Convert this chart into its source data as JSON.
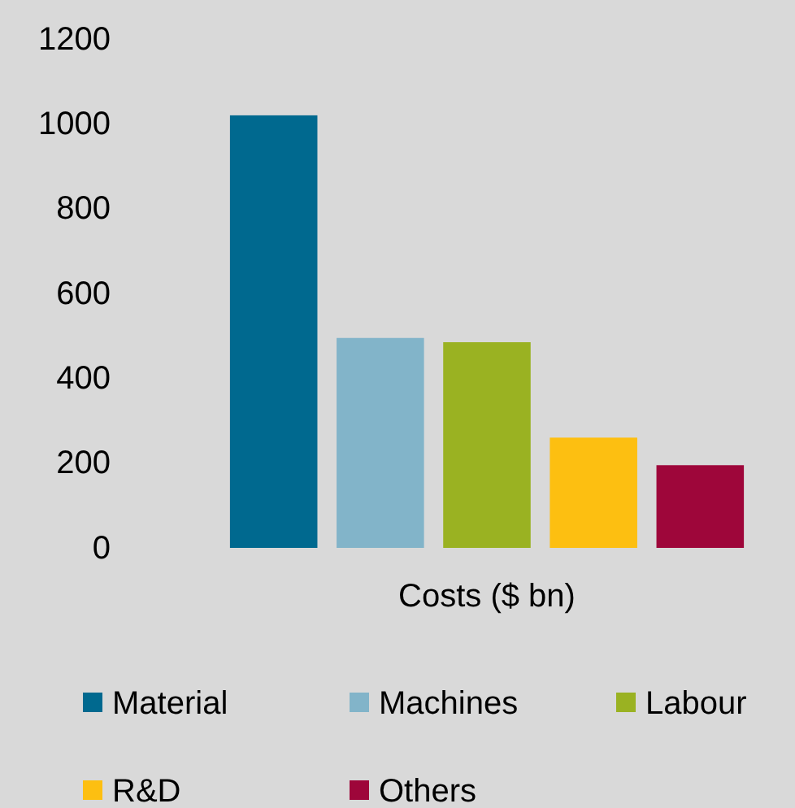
{
  "chart_data": {
    "type": "bar",
    "xlabel": "Costs ($ bn)",
    "categories": [
      null
    ],
    "series": [
      {
        "name": "Material",
        "color": "#00698f",
        "values": [
          1020
        ]
      },
      {
        "name": "Machines",
        "color": "#82b4c9",
        "values": [
          495
        ]
      },
      {
        "name": "Labour",
        "color": "#9ab222",
        "values": [
          485
        ]
      },
      {
        "name": "R&D",
        "color": "#fdbf11",
        "values": [
          260
        ]
      },
      {
        "name": "Others",
        "color": "#9e063a",
        "values": [
          195
        ]
      }
    ],
    "ylim": [
      0,
      1200
    ],
    "yticks": [
      0,
      200,
      400,
      600,
      800,
      1000,
      1200
    ],
    "grid": false,
    "legend": "bottom"
  }
}
